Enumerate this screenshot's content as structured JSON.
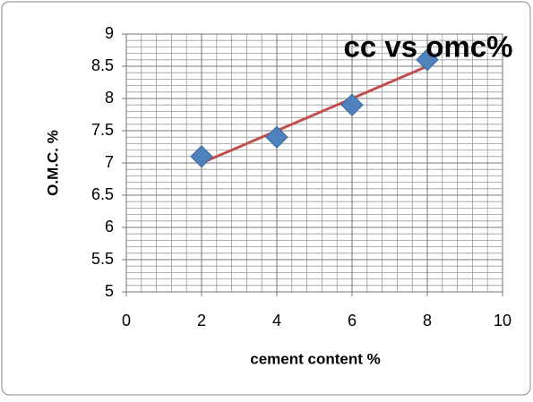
{
  "chart_data": {
    "type": "scatter",
    "title": "cc vs omc%",
    "x_label": "cement content %",
    "y_label": "O.M.C. %",
    "series": [
      {
        "x": [
          2,
          4,
          6,
          8
        ],
        "values": [
          7.1,
          7.4,
          7.9,
          8.6
        ],
        "color": "#4f81bd"
      }
    ],
    "trendline": "linear",
    "trendline_color": "#c0504d",
    "xlim": [
      0,
      10
    ],
    "xticks": [
      0,
      2,
      4,
      6,
      8,
      10
    ],
    "ylim": [
      5,
      9
    ],
    "yticks": [
      5,
      {
        "value": 5.5,
        "label": "5.5"
      },
      6,
      6.5,
      7,
      7.5,
      8,
      8.5,
      9
    ],
    "grid": true,
    "x_minor_step": 0.4,
    "y_minor_step": 0.1
  }
}
